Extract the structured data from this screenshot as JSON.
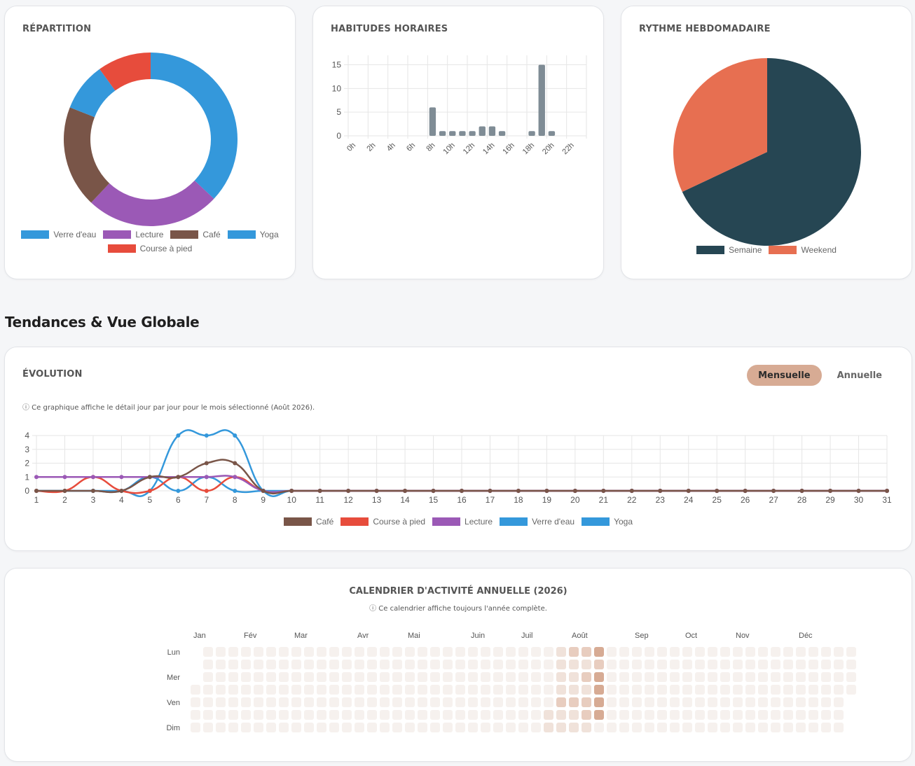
{
  "cards": {
    "repartition_title": "RÉPARTITION",
    "horaires_title": "HABITUDES HORAIRES",
    "hebdo_title": "RYTHME HEBDOMADAIRE"
  },
  "section_heading": "Tendances & Vue Globale",
  "evolution": {
    "title": "ÉVOLUTION",
    "toggle_monthly": "Mensuelle",
    "toggle_yearly": "Annuelle",
    "active_toggle": "Mensuelle",
    "note": "ⓘ Ce graphique affiche le détail jour par jour pour le mois sélectionné (Août 2026)."
  },
  "calendar": {
    "title": "CALENDRIER D'ACTIVITÉ ANNUELLE (2026)",
    "note": "ⓘ Ce calendrier affiche toujours l'année complète.",
    "months": [
      "Jan",
      "Fév",
      "Mar",
      "Avr",
      "Mai",
      "Juin",
      "Juil",
      "Août",
      "Sep",
      "Oct",
      "Nov",
      "Déc"
    ],
    "days": [
      "Lun",
      "Mer",
      "Ven",
      "Dim"
    ],
    "colors": [
      "#f6f1ee",
      "#f0e2da",
      "#e8cdbf",
      "#d7ab94"
    ]
  },
  "chart_data": [
    {
      "id": "repartition",
      "type": "doughnut",
      "labels": [
        "Verre d'eau",
        "Lecture",
        "Café",
        "Yoga",
        "Course à pied"
      ],
      "values": [
        37,
        25,
        19,
        9,
        10
      ],
      "colors": [
        "#3498db",
        "#9b59b6",
        "#795548",
        "#3498db",
        "#e74c3c"
      ],
      "legend": "bottom"
    },
    {
      "id": "horaires",
      "type": "bar",
      "categories": [
        "0h",
        "1h",
        "2h",
        "3h",
        "4h",
        "5h",
        "6h",
        "7h",
        "8h",
        "9h",
        "10h",
        "11h",
        "12h",
        "13h",
        "14h",
        "15h",
        "16h",
        "17h",
        "18h",
        "19h",
        "20h",
        "21h",
        "22h",
        "23h"
      ],
      "tick_labels": [
        "0h",
        "2h",
        "4h",
        "6h",
        "8h",
        "10h",
        "12h",
        "14h",
        "16h",
        "18h",
        "20h",
        "22h"
      ],
      "values": [
        0,
        0,
        0,
        0,
        0,
        0,
        0,
        0,
        6,
        1,
        1,
        1,
        1,
        2,
        2,
        1,
        0,
        0,
        1,
        15,
        1,
        0,
        0,
        0
      ],
      "ylim": [
        0,
        17
      ],
      "yticks": [
        0,
        5,
        10,
        15
      ],
      "color": "#7f8c95",
      "grid": true
    },
    {
      "id": "hebdo",
      "type": "pie",
      "labels": [
        "Semaine",
        "Weekend"
      ],
      "values": [
        68,
        32
      ],
      "colors": [
        "#264653",
        "#e76f51"
      ],
      "legend": "bottom"
    },
    {
      "id": "evolution",
      "type": "line",
      "x": [
        1,
        2,
        3,
        4,
        5,
        6,
        7,
        8,
        9,
        10,
        11,
        12,
        13,
        14,
        15,
        16,
        17,
        18,
        19,
        20,
        21,
        22,
        23,
        24,
        25,
        26,
        27,
        28,
        29,
        30,
        31
      ],
      "ylim": [
        0,
        4
      ],
      "yticks": [
        0,
        1,
        2,
        3,
        4
      ],
      "grid": true,
      "legend": "bottom",
      "series": [
        {
          "name": "Café",
          "color": "#795548",
          "values": [
            0,
            0,
            0,
            0,
            1,
            1,
            2,
            2,
            0,
            0,
            0,
            0,
            0,
            0,
            0,
            0,
            0,
            0,
            0,
            0,
            0,
            0,
            0,
            0,
            0,
            0,
            0,
            0,
            0,
            0,
            0
          ]
        },
        {
          "name": "Course à pied",
          "color": "#e74c3c",
          "values": [
            0,
            0,
            1,
            0,
            0,
            1,
            0,
            1,
            0,
            0,
            0,
            0,
            0,
            0,
            0,
            0,
            0,
            0,
            0,
            0,
            0,
            0,
            0,
            0,
            0,
            0,
            0,
            0,
            0,
            0,
            0
          ]
        },
        {
          "name": "Lecture",
          "color": "#9b59b6",
          "values": [
            1,
            1,
            1,
            1,
            1,
            1,
            1,
            1,
            0,
            0,
            0,
            0,
            0,
            0,
            0,
            0,
            0,
            0,
            0,
            0,
            0,
            0,
            0,
            0,
            0,
            0,
            0,
            0,
            0,
            0,
            0
          ]
        },
        {
          "name": "Verre d'eau",
          "color": "#3498db",
          "values": [
            0,
            0,
            0,
            0,
            0,
            4,
            4,
            4,
            0,
            0,
            0,
            0,
            0,
            0,
            0,
            0,
            0,
            0,
            0,
            0,
            0,
            0,
            0,
            0,
            0,
            0,
            0,
            0,
            0,
            0,
            0
          ]
        },
        {
          "name": "Yoga",
          "color": "#3498db",
          "values": [
            0,
            0,
            0,
            0,
            1,
            0,
            1,
            0,
            0,
            0,
            0,
            0,
            0,
            0,
            0,
            0,
            0,
            0,
            0,
            0,
            0,
            0,
            0,
            0,
            0,
            0,
            0,
            0,
            0,
            0,
            0
          ]
        }
      ]
    },
    {
      "id": "calendrier",
      "type": "heatmap",
      "year": 2026,
      "active_days": [
        {
          "date": "2026-07-18",
          "level": 1
        },
        {
          "date": "2026-07-19",
          "level": 1
        },
        {
          "date": "2026-07-20",
          "level": 1
        },
        {
          "date": "2026-07-21",
          "level": 1
        },
        {
          "date": "2026-07-22",
          "level": 1
        },
        {
          "date": "2026-07-23",
          "level": 1
        },
        {
          "date": "2026-07-24",
          "level": 2
        },
        {
          "date": "2026-07-25",
          "level": 1
        },
        {
          "date": "2026-07-26",
          "level": 1
        },
        {
          "date": "2026-07-27",
          "level": 2
        },
        {
          "date": "2026-07-28",
          "level": 1
        },
        {
          "date": "2026-07-29",
          "level": 1
        },
        {
          "date": "2026-07-30",
          "level": 1
        },
        {
          "date": "2026-07-31",
          "level": 2
        },
        {
          "date": "2026-08-01",
          "level": 1
        },
        {
          "date": "2026-08-02",
          "level": 1
        },
        {
          "date": "2026-08-03",
          "level": 2
        },
        {
          "date": "2026-08-04",
          "level": 1
        },
        {
          "date": "2026-08-05",
          "level": 2
        },
        {
          "date": "2026-08-06",
          "level": 1
        },
        {
          "date": "2026-08-07",
          "level": 2
        },
        {
          "date": "2026-08-08",
          "level": 2
        },
        {
          "date": "2026-08-09",
          "level": 1
        },
        {
          "date": "2026-08-10",
          "level": 3
        },
        {
          "date": "2026-08-11",
          "level": 2
        },
        {
          "date": "2026-08-12",
          "level": 3
        },
        {
          "date": "2026-08-13",
          "level": 3
        },
        {
          "date": "2026-08-14",
          "level": 3
        },
        {
          "date": "2026-08-15",
          "level": 3
        }
      ]
    }
  ]
}
